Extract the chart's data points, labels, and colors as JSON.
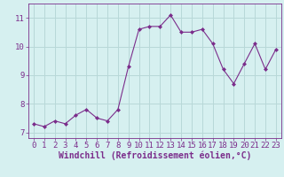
{
  "x": [
    0,
    1,
    2,
    3,
    4,
    5,
    6,
    7,
    8,
    9,
    10,
    11,
    12,
    13,
    14,
    15,
    16,
    17,
    18,
    19,
    20,
    21,
    22,
    23
  ],
  "y": [
    7.3,
    7.2,
    7.4,
    7.3,
    7.6,
    7.8,
    7.5,
    7.4,
    7.8,
    9.3,
    10.6,
    10.7,
    10.7,
    11.1,
    10.5,
    10.5,
    10.6,
    10.1,
    9.2,
    8.7,
    9.4,
    10.1,
    9.2,
    9.9
  ],
  "line_color": "#7b2d8b",
  "marker": "D",
  "marker_size": 2,
  "bg_color": "#d6f0f0",
  "grid_color": "#b8d8d8",
  "xlabel": "Windchill (Refroidissement éolien,°C)",
  "xlabel_color": "#7b2d8b",
  "tick_color": "#7b2d8b",
  "ylim": [
    6.8,
    11.5
  ],
  "xlim": [
    -0.5,
    23.5
  ],
  "yticks": [
    7,
    8,
    9,
    10,
    11
  ],
  "xticks": [
    0,
    1,
    2,
    3,
    4,
    5,
    6,
    7,
    8,
    9,
    10,
    11,
    12,
    13,
    14,
    15,
    16,
    17,
    18,
    19,
    20,
    21,
    22,
    23
  ],
  "tick_fontsize": 6.5,
  "xlabel_fontsize": 7
}
